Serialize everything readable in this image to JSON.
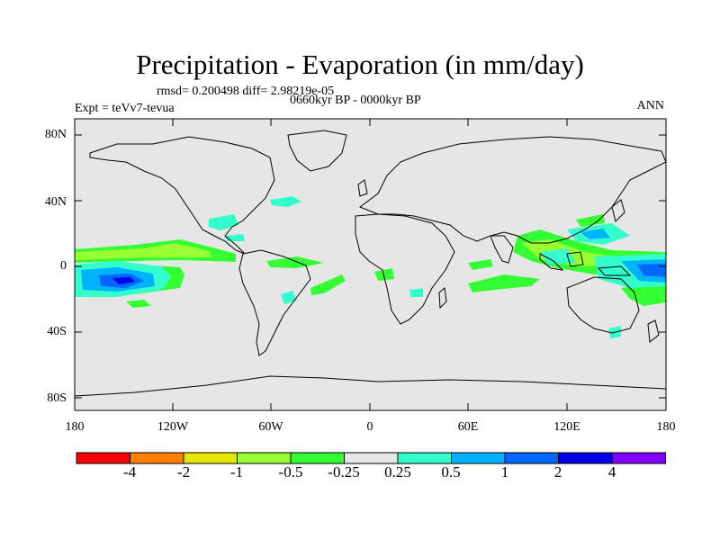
{
  "title": "Precipitation - Evaporation (in mm/day)",
  "stats": "rmsd= 0.200498  diff= 2.98219e-05",
  "experiment": "Expt = teVv7-tevua",
  "period": "0660kyr BP - 0000kyr BP",
  "season": "ANN",
  "lat_labels": [
    "80N",
    "40N",
    "0",
    "40S",
    "80S"
  ],
  "lon_labels": [
    "180",
    "120W",
    "60W",
    "0",
    "60E",
    "120E",
    "180"
  ],
  "colorbar": {
    "labels": [
      "-4",
      "-2",
      "-1",
      "-0.5",
      "-0.25",
      "0.25",
      "0.5",
      "1",
      "2",
      "4"
    ],
    "colors": [
      "#ff0000",
      "#ff8000",
      "#e6e600",
      "#99ff33",
      "#33ff33",
      "#e6e6e6",
      "#33ffcc",
      "#00b3ff",
      "#0066ff",
      "#0000e6",
      "#8000ff"
    ]
  },
  "map_colors": {
    "background": "#e6e6e6",
    "coast": "#000000"
  }
}
